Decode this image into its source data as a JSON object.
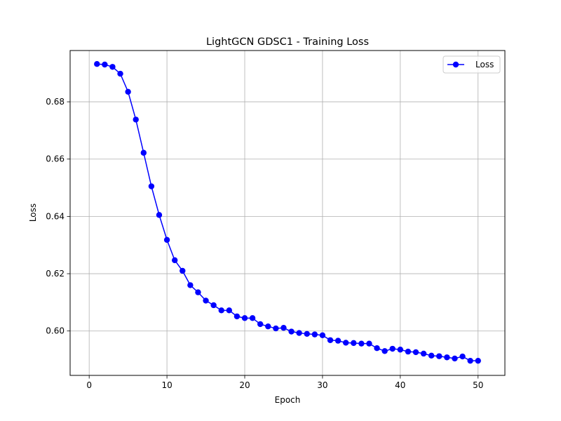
{
  "chart_data": {
    "type": "line",
    "title": "LightGCN GDSC1 - Training Loss",
    "xlabel": "Epoch",
    "ylabel": "Loss",
    "xlim": [
      -2.45,
      53.45
    ],
    "ylim": [
      0.5845,
      0.6979
    ],
    "xticks": [
      0,
      10,
      20,
      30,
      40,
      50
    ],
    "xtick_labels": [
      "0",
      "10",
      "20",
      "30",
      "40",
      "50"
    ],
    "yticks": [
      0.6,
      0.62,
      0.64,
      0.66,
      0.68
    ],
    "ytick_labels": [
      "0.60",
      "0.62",
      "0.64",
      "0.66",
      "0.68"
    ],
    "grid": true,
    "legend_position": "upper right",
    "series": [
      {
        "name": "Loss",
        "color": "#0000ff",
        "marker": "circle",
        "x": [
          1,
          2,
          3,
          4,
          5,
          6,
          7,
          8,
          9,
          10,
          11,
          12,
          13,
          14,
          15,
          16,
          17,
          18,
          19,
          20,
          21,
          22,
          23,
          24,
          25,
          26,
          27,
          28,
          29,
          30,
          31,
          32,
          33,
          34,
          35,
          36,
          37,
          38,
          39,
          40,
          41,
          42,
          43,
          44,
          45,
          46,
          47,
          48,
          49,
          50
        ],
        "y": [
          0.6932,
          0.693,
          0.6922,
          0.6898,
          0.6835,
          0.6738,
          0.6622,
          0.6505,
          0.6405,
          0.6318,
          0.6247,
          0.621,
          0.616,
          0.6135,
          0.6106,
          0.609,
          0.6072,
          0.6072,
          0.6051,
          0.6045,
          0.6045,
          0.6024,
          0.6016,
          0.6009,
          0.6011,
          0.5998,
          0.5993,
          0.599,
          0.5988,
          0.5985,
          0.5968,
          0.5966,
          0.5959,
          0.5958,
          0.5956,
          0.5956,
          0.594,
          0.593,
          0.5938,
          0.5935,
          0.5928,
          0.5926,
          0.5921,
          0.5914,
          0.5912,
          0.5908,
          0.5904,
          0.5911,
          0.5896,
          0.5896
        ]
      }
    ]
  }
}
